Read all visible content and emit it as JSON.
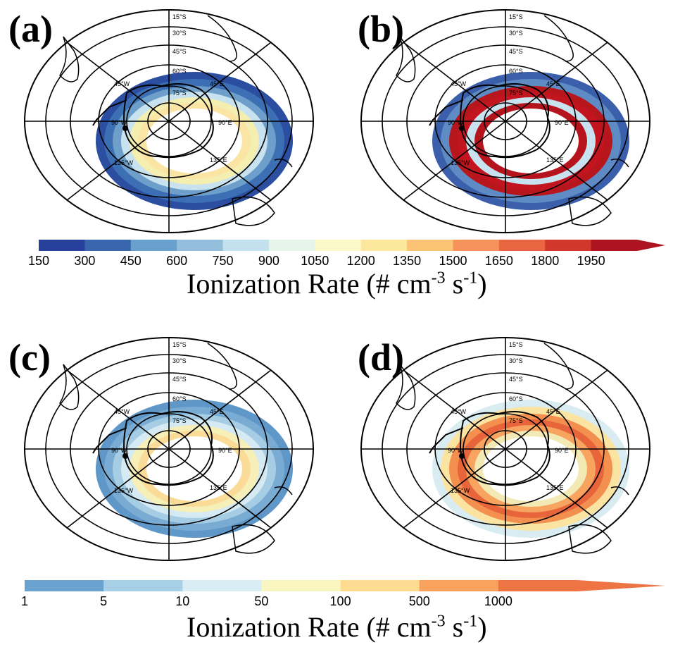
{
  "panels": [
    {
      "label": "(a)",
      "scale": "top",
      "colors": [
        "#2c4ea0",
        "#3d6fb5",
        "#6d9fca",
        "#c8e3ef",
        "#f4eeb0",
        "#fbe5a4"
      ]
    },
    {
      "label": "(b)",
      "scale": "top",
      "colors": [
        "#3b5fab",
        "#5e8bc4",
        "#b7171c",
        "#c2151f",
        "#c8e3ef",
        "#b5141c"
      ]
    },
    {
      "label": "(c)",
      "scale": "bottom",
      "colors": [
        "#5e97c8",
        "#7aacd3",
        "#a6cde4",
        "#d5eaf2",
        "#f6efb8",
        "#fadc98"
      ]
    },
    {
      "label": "(d)",
      "scale": "bottom",
      "colors": [
        "#d9ecf2",
        "#fbe3a1",
        "#f3904f",
        "#e8643b",
        "#f6a45f",
        "#f2e9b4"
      ]
    }
  ],
  "grid_labels": {
    "lat": [
      "15°S",
      "30°S",
      "45°S",
      "60°S",
      "75°S"
    ],
    "lon": [
      "45°E",
      "90°E",
      "135°E",
      "45°W",
      "90°W",
      "135°W"
    ]
  },
  "colorbar_top": {
    "ticks": [
      "150",
      "300",
      "450",
      "600",
      "750",
      "900",
      "1050",
      "1200",
      "1350",
      "1500",
      "1650",
      "1800",
      "1950"
    ],
    "colors": [
      "#24409a",
      "#3a66b0",
      "#6aa0cd",
      "#93bfdd",
      "#c3e0ee",
      "#e7f4ec",
      "#fbf8c7",
      "#fde79c",
      "#fbc475",
      "#f6935d",
      "#ea6541",
      "#d1372b",
      "#ae1320"
    ]
  },
  "colorbar_bottom": {
    "ticks": [
      "1",
      "5",
      "10",
      "50",
      "100",
      "500",
      "1000"
    ],
    "colors": [
      "#6aa3d0",
      "#a7cfe5",
      "#d9edf4",
      "#f9f6c1",
      "#fddc92",
      "#f7a25e",
      "#ef7443"
    ]
  },
  "cb_title": {
    "main": "Ionization Rate (# cm",
    "exp1": "-3",
    "mid": " s",
    "exp2": "-1",
    "end": ")"
  }
}
